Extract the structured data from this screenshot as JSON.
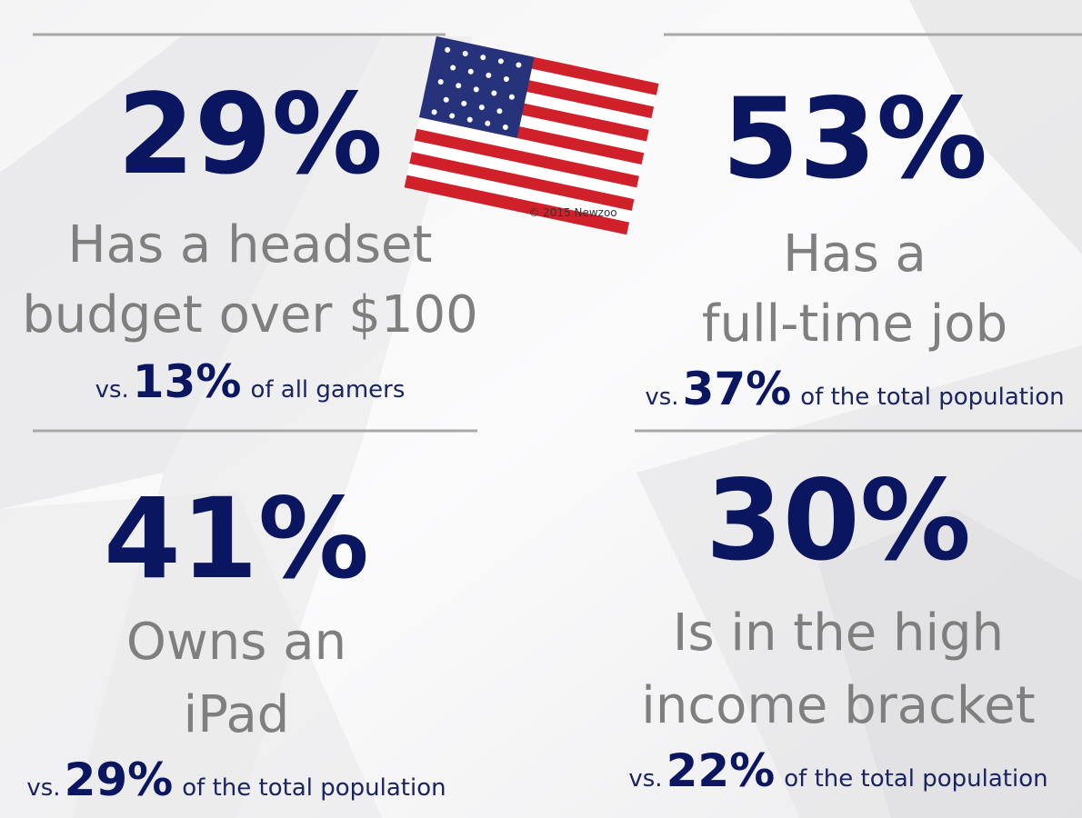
{
  "credit": "© 2015 Newzoo",
  "stats": [
    {
      "value": "29%",
      "lines": [
        "Has a headset",
        "budget over $100"
      ],
      "prefix": "vs.",
      "comparison": "13%",
      "suffix": "of all gamers"
    },
    {
      "value": "53%",
      "lines": [
        "Has a",
        "full-time job"
      ],
      "prefix": "vs.",
      "comparison": "37%",
      "suffix": "of the total population"
    },
    {
      "value": "41%",
      "lines": [
        "Owns an",
        "iPad"
      ],
      "prefix": "vs.",
      "comparison": "29%",
      "suffix": "of the total population"
    },
    {
      "value": "30%",
      "lines": [
        "Is in the high",
        "income bracket"
      ],
      "prefix": "vs.",
      "comparison": "22%",
      "suffix": "of the total population"
    }
  ]
}
